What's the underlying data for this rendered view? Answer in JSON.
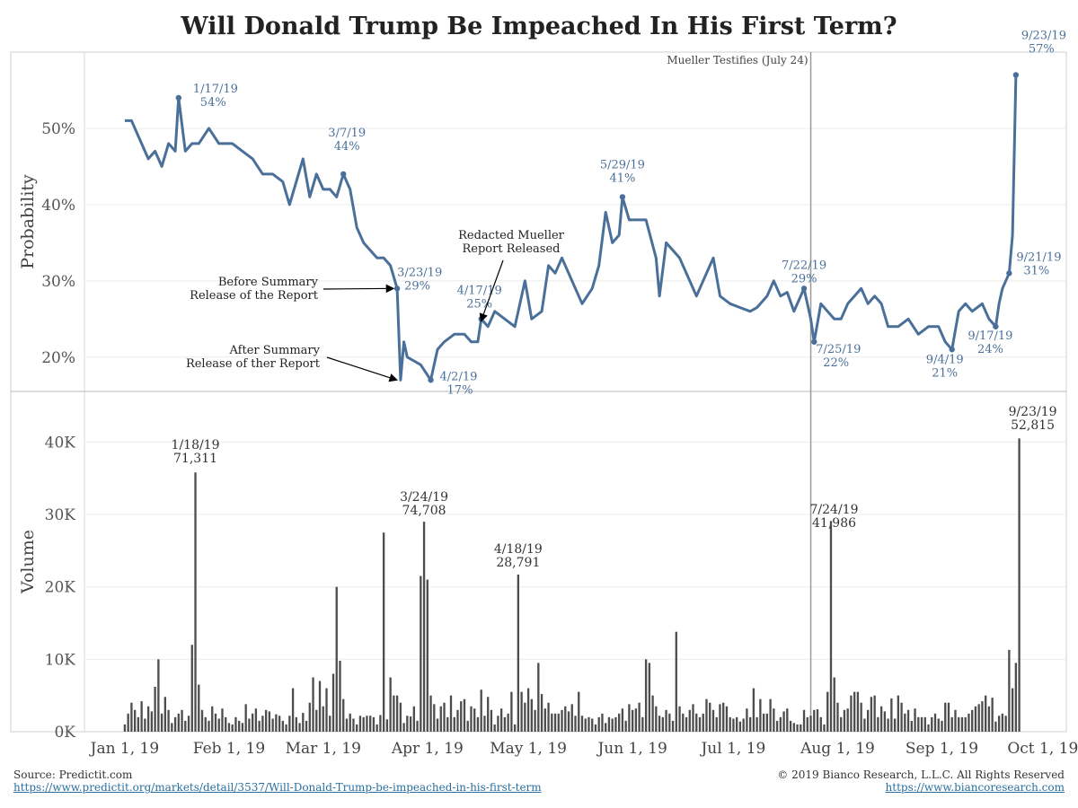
{
  "chart_data": [
    {
      "type": "line",
      "title": "Will Donald Trump Be Impeached In His First Term?",
      "ylabel": "Probability",
      "ylim": [
        0.155,
        0.6
      ],
      "xlim": [
        "2018-12-20",
        "2019-10-08"
      ],
      "x_ticks": [
        "Jan 1, 19",
        "Feb 1, 19",
        "Mar 1, 19",
        "Apr 1, 19",
        "May 1, 19",
        "Jun 1, 19",
        "Jul 1, 19",
        "Aug 1, 19",
        "Sep 1, 19",
        "Oct 1, 19"
      ],
      "y_ticks": [
        {
          "v": 0.2,
          "label": "20%"
        },
        {
          "v": 0.3,
          "label": "30%"
        },
        {
          "v": 0.4,
          "label": "40%"
        },
        {
          "v": 0.5,
          "label": "50%"
        }
      ],
      "grid": true,
      "line_color": "#4a7099",
      "series": [
        {
          "points": [
            [
              "2019-01-01",
              0.51
            ],
            [
              "2019-01-03",
              0.51
            ],
            [
              "2019-01-06",
              0.48
            ],
            [
              "2019-01-08",
              0.46
            ],
            [
              "2019-01-10",
              0.47
            ],
            [
              "2019-01-12",
              0.45
            ],
            [
              "2019-01-14",
              0.48
            ],
            [
              "2019-01-16",
              0.47
            ],
            [
              "2019-01-17",
              0.54
            ],
            [
              "2019-01-19",
              0.47
            ],
            [
              "2019-01-21",
              0.48
            ],
            [
              "2019-01-23",
              0.48
            ],
            [
              "2019-01-26",
              0.5
            ],
            [
              "2019-01-29",
              0.48
            ],
            [
              "2019-02-02",
              0.48
            ],
            [
              "2019-02-05",
              0.47
            ],
            [
              "2019-02-08",
              0.46
            ],
            [
              "2019-02-11",
              0.44
            ],
            [
              "2019-02-14",
              0.44
            ],
            [
              "2019-02-17",
              0.43
            ],
            [
              "2019-02-19",
              0.4
            ],
            [
              "2019-02-21",
              0.43
            ],
            [
              "2019-02-23",
              0.46
            ],
            [
              "2019-02-25",
              0.41
            ],
            [
              "2019-02-27",
              0.44
            ],
            [
              "2019-03-01",
              0.42
            ],
            [
              "2019-03-03",
              0.42
            ],
            [
              "2019-03-05",
              0.41
            ],
            [
              "2019-03-07",
              0.44
            ],
            [
              "2019-03-09",
              0.42
            ],
            [
              "2019-03-11",
              0.37
            ],
            [
              "2019-03-13",
              0.35
            ],
            [
              "2019-03-15",
              0.34
            ],
            [
              "2019-03-17",
              0.33
            ],
            [
              "2019-03-19",
              0.33
            ],
            [
              "2019-03-21",
              0.32
            ],
            [
              "2019-03-23",
              0.29
            ],
            [
              "2019-03-24",
              0.17
            ],
            [
              "2019-03-25",
              0.22
            ],
            [
              "2019-03-26",
              0.2
            ],
            [
              "2019-03-28",
              0.195
            ],
            [
              "2019-03-30",
              0.19
            ],
            [
              "2019-04-02",
              0.17
            ],
            [
              "2019-04-04",
              0.21
            ],
            [
              "2019-04-06",
              0.22
            ],
            [
              "2019-04-09",
              0.23
            ],
            [
              "2019-04-12",
              0.23
            ],
            [
              "2019-04-14",
              0.22
            ],
            [
              "2019-04-16",
              0.22
            ],
            [
              "2019-04-17",
              0.25
            ],
            [
              "2019-04-19",
              0.24
            ],
            [
              "2019-04-21",
              0.26
            ],
            [
              "2019-04-24",
              0.25
            ],
            [
              "2019-04-27",
              0.24
            ],
            [
              "2019-04-30",
              0.3
            ],
            [
              "2019-05-02",
              0.25
            ],
            [
              "2019-05-05",
              0.26
            ],
            [
              "2019-05-07",
              0.32
            ],
            [
              "2019-05-09",
              0.31
            ],
            [
              "2019-05-11",
              0.33
            ],
            [
              "2019-05-13",
              0.31
            ],
            [
              "2019-05-15",
              0.29
            ],
            [
              "2019-05-17",
              0.27
            ],
            [
              "2019-05-20",
              0.29
            ],
            [
              "2019-05-22",
              0.32
            ],
            [
              "2019-05-24",
              0.39
            ],
            [
              "2019-05-26",
              0.35
            ],
            [
              "2019-05-28",
              0.36
            ],
            [
              "2019-05-29",
              0.41
            ],
            [
              "2019-05-31",
              0.38
            ],
            [
              "2019-06-02",
              0.38
            ],
            [
              "2019-06-05",
              0.38
            ],
            [
              "2019-06-08",
              0.33
            ],
            [
              "2019-06-09",
              0.28
            ],
            [
              "2019-06-11",
              0.35
            ],
            [
              "2019-06-13",
              0.34
            ],
            [
              "2019-06-15",
              0.33
            ],
            [
              "2019-06-18",
              0.3
            ],
            [
              "2019-06-20",
              0.28
            ],
            [
              "2019-06-22",
              0.3
            ],
            [
              "2019-06-25",
              0.33
            ],
            [
              "2019-06-27",
              0.28
            ],
            [
              "2019-06-30",
              0.27
            ],
            [
              "2019-07-03",
              0.265
            ],
            [
              "2019-07-06",
              0.26
            ],
            [
              "2019-07-08",
              0.265
            ],
            [
              "2019-07-11",
              0.28
            ],
            [
              "2019-07-13",
              0.3
            ],
            [
              "2019-07-15",
              0.28
            ],
            [
              "2019-07-17",
              0.285
            ],
            [
              "2019-07-19",
              0.26
            ],
            [
              "2019-07-22",
              0.29
            ],
            [
              "2019-07-24",
              0.25
            ],
            [
              "2019-07-25",
              0.22
            ],
            [
              "2019-07-27",
              0.27
            ],
            [
              "2019-07-29",
              0.26
            ],
            [
              "2019-07-31",
              0.25
            ],
            [
              "2019-08-02",
              0.25
            ],
            [
              "2019-08-04",
              0.27
            ],
            [
              "2019-08-06",
              0.28
            ],
            [
              "2019-08-08",
              0.29
            ],
            [
              "2019-08-10",
              0.27
            ],
            [
              "2019-08-12",
              0.28
            ],
            [
              "2019-08-14",
              0.27
            ],
            [
              "2019-08-16",
              0.24
            ],
            [
              "2019-08-19",
              0.24
            ],
            [
              "2019-08-22",
              0.25
            ],
            [
              "2019-08-25",
              0.23
            ],
            [
              "2019-08-28",
              0.24
            ],
            [
              "2019-08-31",
              0.24
            ],
            [
              "2019-09-02",
              0.22
            ],
            [
              "2019-09-04",
              0.21
            ],
            [
              "2019-09-06",
              0.26
            ],
            [
              "2019-09-08",
              0.27
            ],
            [
              "2019-09-10",
              0.26
            ],
            [
              "2019-09-13",
              0.27
            ],
            [
              "2019-09-15",
              0.25
            ],
            [
              "2019-09-17",
              0.24
            ],
            [
              "2019-09-18",
              0.27
            ],
            [
              "2019-09-19",
              0.29
            ],
            [
              "2019-09-21",
              0.31
            ],
            [
              "2019-09-22",
              0.36
            ],
            [
              "2019-09-23",
              0.57
            ]
          ]
        }
      ],
      "annotations": [
        {
          "date": "2019-01-17",
          "value": 0.54,
          "date_label": "1/17/19",
          "value_label": "54%"
        },
        {
          "date": "2019-03-07",
          "value": 0.44,
          "date_label": "3/7/19",
          "value_label": "44%"
        },
        {
          "date": "2019-03-23",
          "value": 0.29,
          "date_label": "3/23/19",
          "value_label": "29%"
        },
        {
          "date": "2019-04-02",
          "value": 0.17,
          "date_label": "4/2/19",
          "value_label": "17%"
        },
        {
          "date": "2019-04-17",
          "value": 0.25,
          "date_label": "4/17/19",
          "value_label": "25%"
        },
        {
          "date": "2019-05-29",
          "value": 0.41,
          "date_label": "5/29/19",
          "value_label": "41%"
        },
        {
          "date": "2019-07-22",
          "value": 0.29,
          "date_label": "7/22/19",
          "value_label": "29%"
        },
        {
          "date": "2019-07-25",
          "value": 0.22,
          "date_label": "7/25/19",
          "value_label": "22%"
        },
        {
          "date": "2019-09-04",
          "value": 0.21,
          "date_label": "9/4/19",
          "value_label": "21%"
        },
        {
          "date": "2019-09-17",
          "value": 0.24,
          "date_label": "9/17/19",
          "value_label": "24%"
        },
        {
          "date": "2019-09-21",
          "value": 0.31,
          "date_label": "9/21/19",
          "value_label": "31%"
        },
        {
          "date": "2019-09-23",
          "value": 0.57,
          "date_label": "9/23/19",
          "value_label": "57%"
        }
      ],
      "callouts": [
        {
          "lines": [
            "Before Summary",
            "Release of the Report"
          ],
          "target_date": "2019-03-23",
          "target_value": 0.29
        },
        {
          "lines": [
            "After Summary",
            "Release of ther Report"
          ],
          "target_date": "2019-03-24",
          "target_value": 0.17
        },
        {
          "lines": [
            "Redacted Mueller",
            "Report Released"
          ],
          "target_date": "2019-04-18",
          "target_value": 0.24
        }
      ],
      "event_line": {
        "date": "2019-07-24",
        "label": "Mueller Testifies (July 24)"
      }
    },
    {
      "type": "bar",
      "ylabel": "Volume",
      "ylim": [
        0,
        46000
      ],
      "y_ticks": [
        {
          "v": 0,
          "label": "0K"
        },
        {
          "v": 10000,
          "label": "10K"
        },
        {
          "v": 20000,
          "label": "20K"
        },
        {
          "v": 30000,
          "label": "30K"
        },
        {
          "v": 40000,
          "label": "40K"
        }
      ],
      "bar_color": "#4d4d4d",
      "start_date": "2019-01-01",
      "daily_values": [
        1000,
        2500,
        4000,
        3000,
        2000,
        4200,
        1800,
        3500,
        2800,
        6200,
        10000,
        2500,
        4800,
        3000,
        1200,
        2000,
        2500,
        3000,
        1500,
        2200,
        12000,
        35800,
        6500,
        3000,
        2000,
        1500,
        3500,
        2500,
        1800,
        3200,
        2000,
        1200,
        1000,
        2000,
        1500,
        1200,
        3800,
        1800,
        2500,
        3200,
        1500,
        2200,
        3000,
        2800,
        1800,
        2400,
        2200,
        1500,
        1000,
        2200,
        6000,
        2000,
        1200,
        2600,
        1500,
        4000,
        7500,
        3000,
        7000,
        3500,
        6000,
        2200,
        8000,
        20000,
        9800,
        4500,
        1800,
        2500,
        1800,
        1000,
        2200,
        2000,
        2200,
        2200,
        2000,
        1000,
        2300,
        27500,
        1700,
        7500,
        5000,
        5000,
        4000,
        1200,
        2200,
        2100,
        3500,
        1500,
        21500,
        29000,
        21000,
        5000,
        3800,
        1800,
        3500,
        4000,
        2000,
        5000,
        2000,
        3000,
        4200,
        4500,
        1500,
        3500,
        3200,
        2000,
        5800,
        2200,
        4800,
        3000,
        1000,
        2200,
        3200,
        2000,
        2500,
        5500,
        1000,
        21700,
        5500,
        4000,
        6000,
        4500,
        3000,
        9500,
        5200,
        3200,
        4000,
        2500,
        2500,
        2500,
        3000,
        3500,
        2800,
        3800,
        2200,
        5500,
        2200,
        1800,
        2000,
        1800,
        1000,
        2000,
        2500,
        1200,
        2000,
        1800,
        2000,
        2500,
        3200,
        1500,
        3800,
        3000,
        3200,
        4000,
        2000,
        10000,
        9500,
        5000,
        3500,
        2200,
        2000,
        3000,
        2500,
        1500,
        13800,
        3500,
        2500,
        2000,
        3000,
        3800,
        2500,
        2000,
        2500,
        4500,
        4000,
        3000,
        2000,
        3800,
        4000,
        3500,
        2000,
        1800,
        2000,
        1400,
        1800,
        3200,
        2000,
        6000,
        2000,
        4500,
        2500,
        2500,
        4500,
        3200,
        1500,
        2000,
        2800,
        3200,
        1500,
        1200,
        1000,
        1000,
        3000,
        2000,
        2200,
        3000,
        3100,
        2000,
        1000,
        5500,
        29100,
        7500,
        4000,
        2000,
        3000,
        3200,
        5000,
        5500,
        5500,
        4000,
        1800,
        3000,
        4800,
        5000,
        2000,
        3500,
        2800,
        1800,
        4600,
        1800,
        5000,
        4000,
        2500,
        3000,
        1500,
        3200,
        2000,
        2000,
        2000,
        1000,
        2000,
        2500,
        1800,
        1500,
        4000,
        4000,
        2000,
        3000,
        2000,
        2000,
        2000,
        2500,
        3000,
        3500,
        3800,
        4200,
        5000,
        3500,
        4700,
        1400,
        2200,
        2500,
        2200,
        11300,
        6000,
        9500,
        40500
      ],
      "annotations": [
        {
          "date": "2019-01-22",
          "date_label": "1/18/19",
          "value_label": "71,311"
        },
        {
          "date": "2019-03-31",
          "date_label": "3/24/19",
          "value_label": "74,708"
        },
        {
          "date": "2019-04-28",
          "date_label": "4/18/19",
          "value_label": "28,791"
        },
        {
          "date": "2019-07-24",
          "date_label": "7/24/19",
          "value_label": "41,986"
        },
        {
          "date": "2019-09-28",
          "date_label": "9/23/19",
          "value_label": "52,815"
        }
      ]
    }
  ],
  "footer": {
    "source": "Source: Predictit.com",
    "source_url": "https://www.predictit.org/markets/detail/3537/Will-Donald-Trump-be-impeached-in-his-first-term",
    "copyright": "© 2019 Bianco Research, L.L.C. All Rights Reserved",
    "site_url": "https://www.biancoresearch.com"
  }
}
